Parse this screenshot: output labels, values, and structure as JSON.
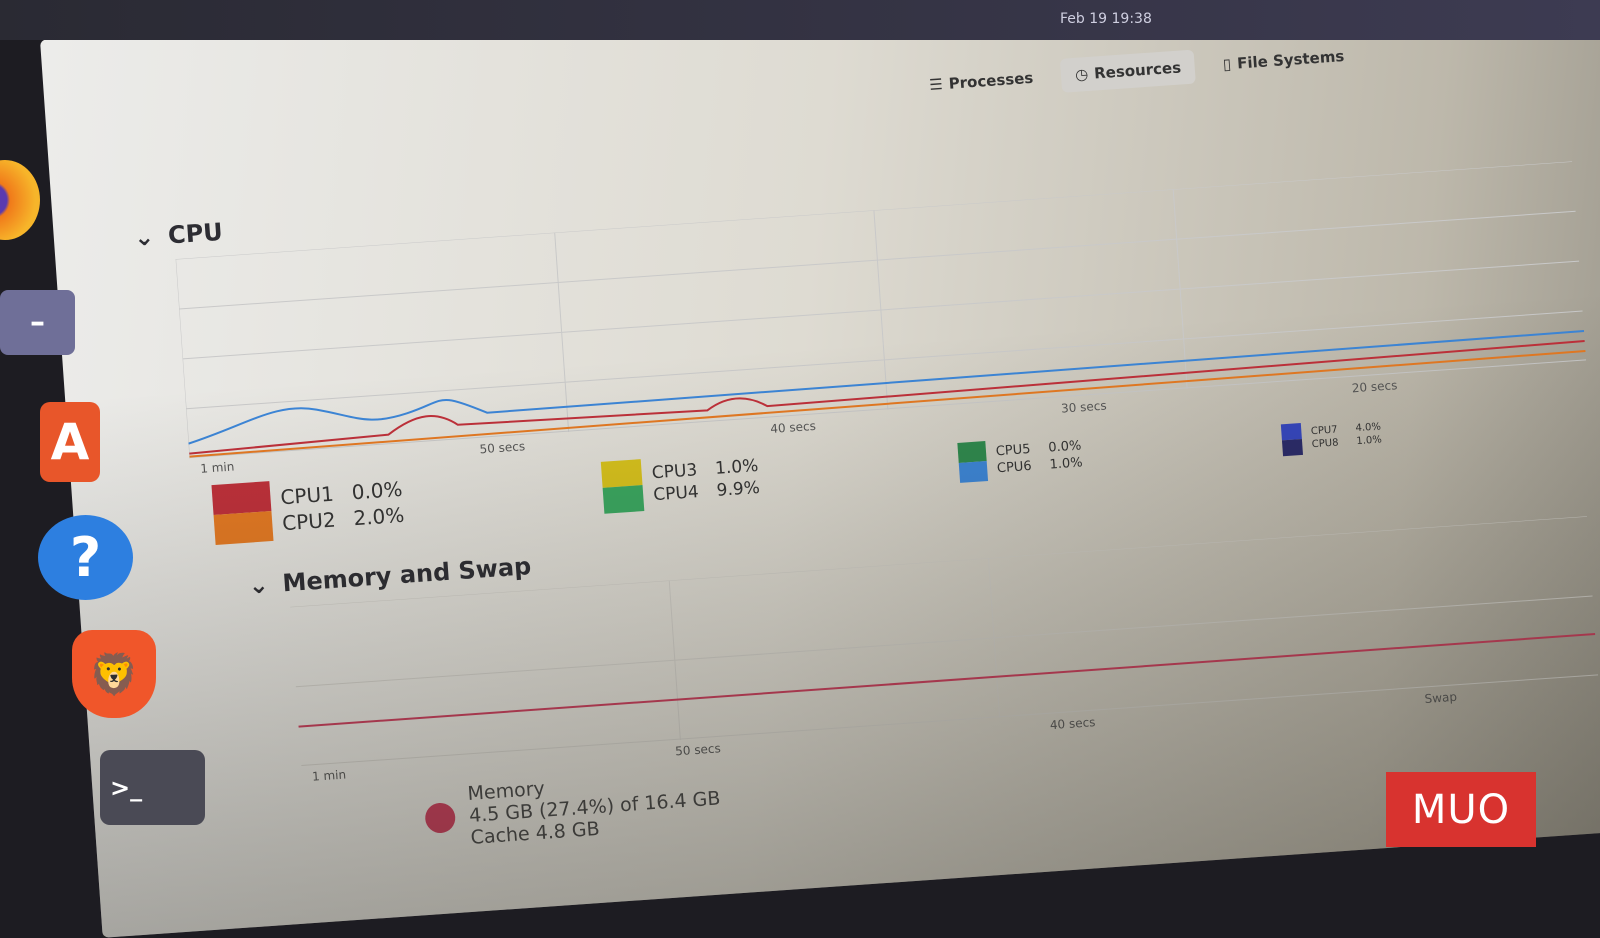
{
  "topbar": {
    "clock": "Feb 19 19:38"
  },
  "tabs": [
    {
      "label": "Processes",
      "icon": "list-icon",
      "active": false
    },
    {
      "label": "Resources",
      "icon": "gauge-icon",
      "active": true
    },
    {
      "label": "File Systems",
      "icon": "disk-icon",
      "active": false
    }
  ],
  "dock": [
    "firefox",
    "files",
    "app-center",
    "help",
    "brave",
    "terminal"
  ],
  "cpu": {
    "title": "CPU",
    "axis": [
      "1 min",
      "50 secs",
      "40 secs",
      "30 secs",
      "20 secs"
    ],
    "cores": [
      {
        "label": "CPU1",
        "value": "0.0%",
        "color": "#c0303a"
      },
      {
        "label": "CPU2",
        "value": "2.0%",
        "color": "#e67a22"
      },
      {
        "label": "CPU3",
        "value": "1.0%",
        "color": "#d8c21c"
      },
      {
        "label": "CPU4",
        "value": "9.9%",
        "color": "#3aa860"
      },
      {
        "label": "CPU5",
        "value": "0.0%",
        "color": "#2f8a4e"
      },
      {
        "label": "CPU6",
        "value": "1.0%",
        "color": "#3c86d8"
      },
      {
        "label": "CPU7",
        "value": "4.0%",
        "color": "#3546c0"
      },
      {
        "label": "CPU8",
        "value": "1.0%",
        "color": "#2a2a6a"
      }
    ]
  },
  "memory": {
    "title": "Memory and Swap",
    "axis": [
      "1 min",
      "50 secs",
      "40 secs"
    ],
    "memory_label": "Memory",
    "memory_value": "4.5 GB (27.4%) of 16.4 GB",
    "cache": "Cache 4.8 GB",
    "swap_label": "Swap",
    "color": "#c83c5a"
  },
  "watermark": "MUO"
}
